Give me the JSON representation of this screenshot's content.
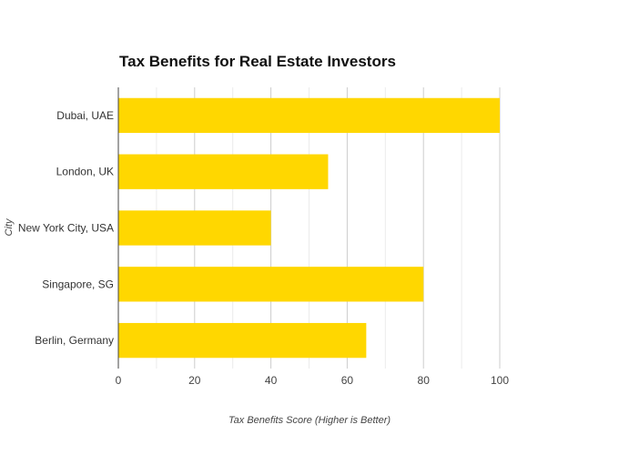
{
  "chart_data": {
    "type": "bar",
    "orientation": "horizontal",
    "title": "Tax Benefits for Real Estate Investors",
    "xlabel": "Tax Benefits Score (Higher is Better)",
    "ylabel": "City",
    "categories": [
      "Dubai, UAE",
      "London, UK",
      "New York City, USA",
      "Singapore, SG",
      "Berlin, Germany"
    ],
    "values": [
      100,
      55,
      40,
      80,
      65
    ],
    "xlim": [
      0,
      100
    ],
    "xticks": [
      0,
      20,
      40,
      60,
      80,
      100
    ],
    "grid": true,
    "legend": "none",
    "bar_color": "#FFD700"
  }
}
